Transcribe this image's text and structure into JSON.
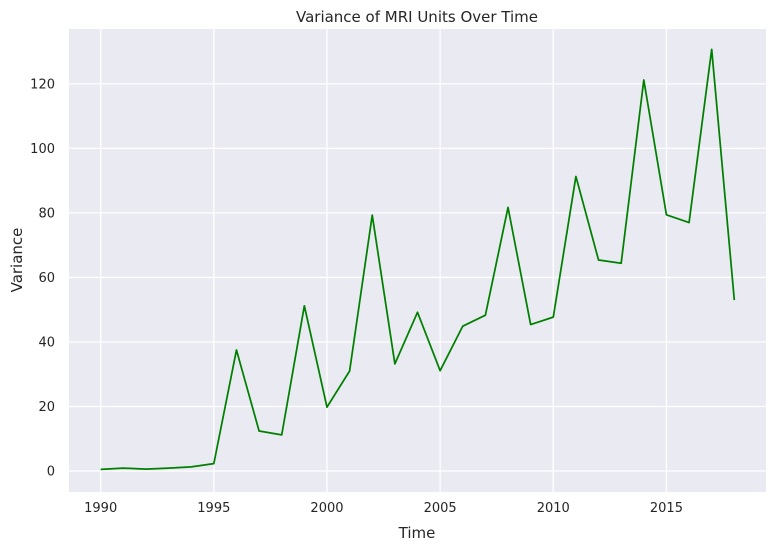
{
  "chart_data": {
    "type": "line",
    "title": "Variance of MRI Units Over Time",
    "xlabel": "Time",
    "ylabel": "Variance",
    "xlim": [
      1988.6,
      2019.4
    ],
    "ylim": [
      -6.5,
      137
    ],
    "xticks": [
      1990,
      1995,
      2000,
      2005,
      2010,
      2015
    ],
    "xtick_labels": [
      "1990",
      "1995",
      "2000",
      "2005",
      "2010",
      "2015"
    ],
    "yticks": [
      0,
      20,
      40,
      60,
      80,
      100,
      120
    ],
    "ytick_labels": [
      "0",
      "20",
      "40",
      "60",
      "80",
      "100",
      "120"
    ],
    "grid": true,
    "colors": {
      "background": "#eaeaf2",
      "grid": "#ffffff",
      "line": "#008000"
    },
    "series": [
      {
        "x": [
          1990,
          1991,
          1992,
          1993,
          1994,
          1995,
          1996,
          1997,
          1998,
          1999,
          2000,
          2001,
          2002,
          2003,
          2004,
          2005,
          2006,
          2007,
          2008,
          2009,
          2010,
          2011,
          2012,
          2013,
          2014,
          2015,
          2016,
          2017,
          2018
        ],
        "values": [
          0.5,
          0.9,
          0.6,
          0.9,
          1.3,
          2.3,
          37.5,
          12.4,
          11.2,
          51.2,
          19.8,
          31.0,
          79.3,
          33.2,
          49.2,
          31.1,
          44.9,
          48.3,
          81.7,
          45.4,
          47.7,
          91.3,
          65.4,
          64.4,
          121.2,
          79.4,
          77.0,
          130.7,
          53.0
        ]
      }
    ]
  }
}
